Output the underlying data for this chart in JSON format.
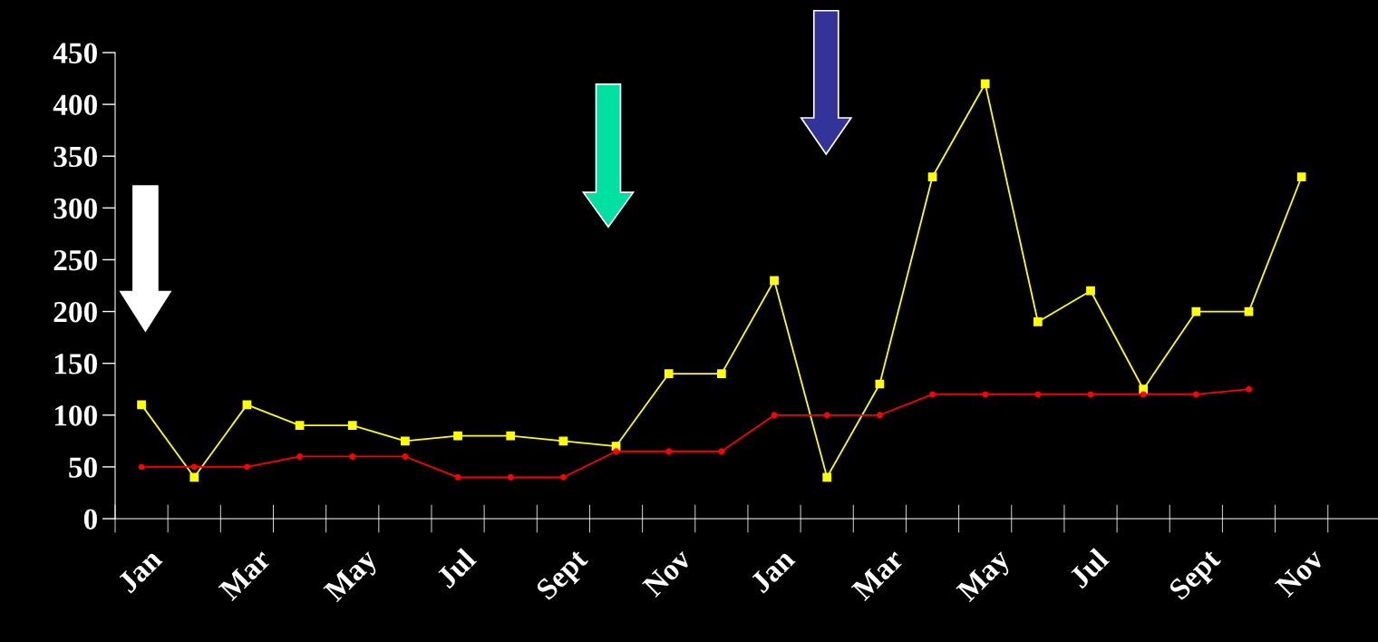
{
  "chart_data": {
    "type": "line",
    "categories": [
      "Jan",
      null,
      "Mar",
      null,
      "May",
      null,
      "Jul",
      null,
      "Sept",
      null,
      "Nov",
      null,
      "Jan",
      null,
      "Mar",
      null,
      "May",
      null,
      "Jul",
      null,
      "Sept",
      null,
      "Nov"
    ],
    "series": [
      {
        "color": "#ffff00",
        "marker": "square",
        "values": [
          110,
          40,
          110,
          90,
          90,
          75,
          80,
          80,
          75,
          70,
          140,
          140,
          230,
          40,
          130,
          330,
          420,
          190,
          220,
          125,
          200,
          200,
          330
        ]
      },
      {
        "color": "#ff0000",
        "marker": "circle",
        "values": [
          50,
          50,
          50,
          60,
          60,
          60,
          40,
          40,
          40,
          65,
          65,
          65,
          100,
          100,
          100,
          120,
          120,
          120,
          120,
          120,
          120,
          125,
          null
        ]
      }
    ],
    "ylim": [
      0,
      450
    ],
    "yticks": [
      0,
      50,
      100,
      150,
      200,
      250,
      300,
      350,
      400,
      450
    ],
    "grid": false,
    "legend": false,
    "line_style": "solid"
  }
}
